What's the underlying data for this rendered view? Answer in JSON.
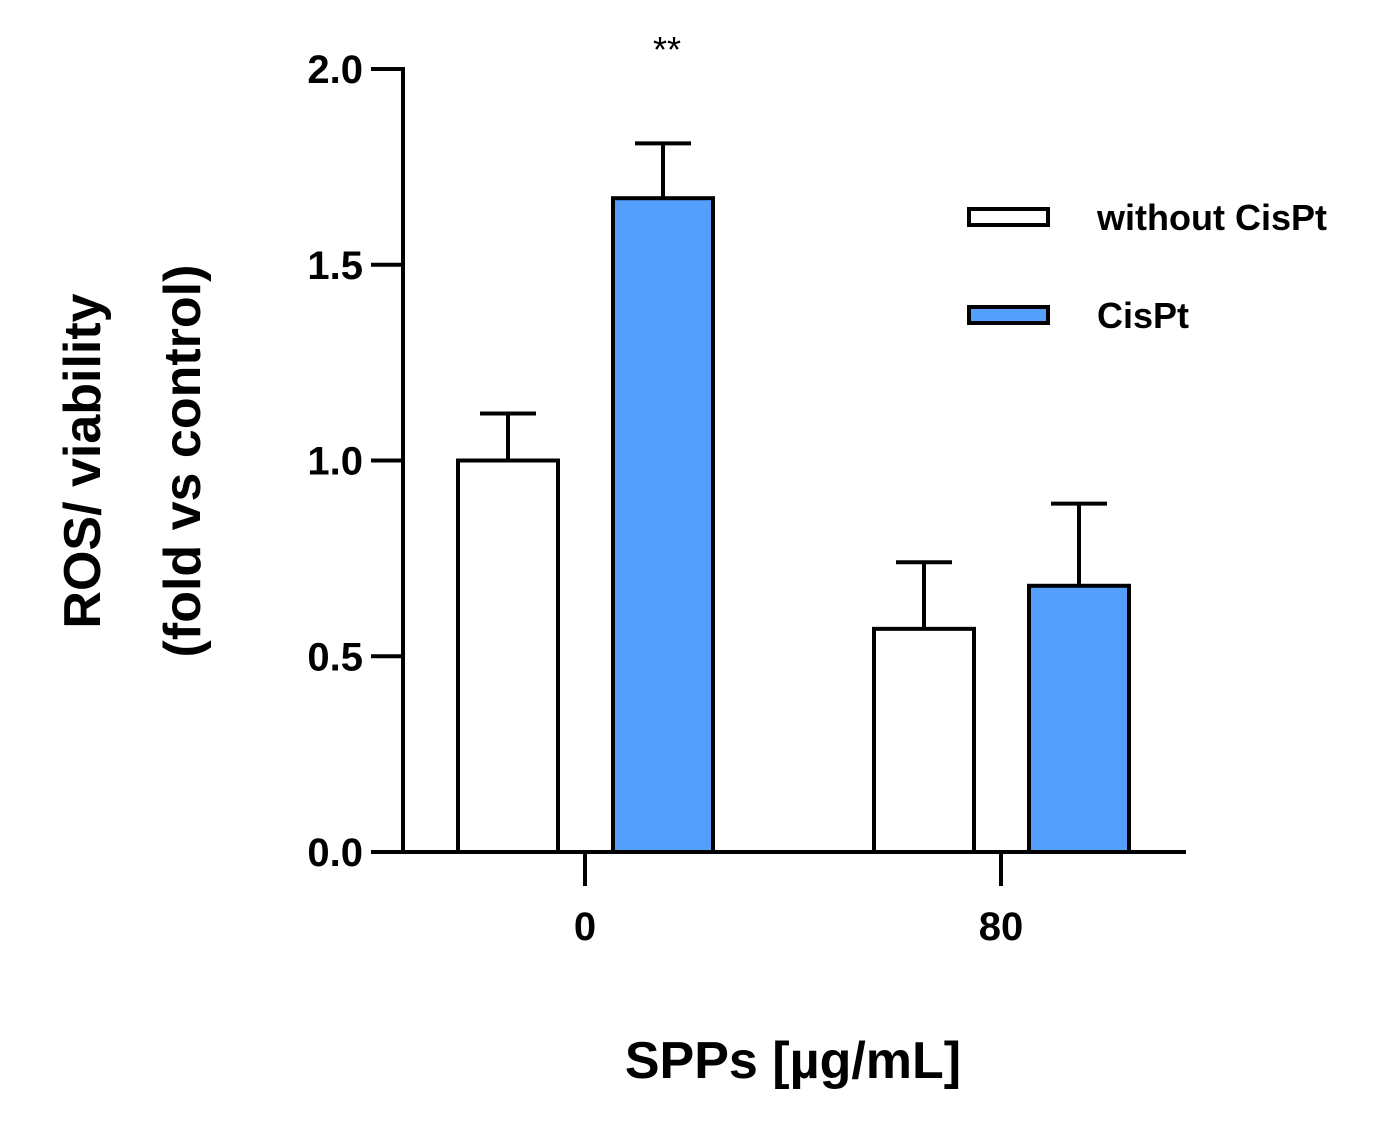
{
  "chart_data": {
    "type": "bar",
    "title": "",
    "xlabel": "SPPs [µg/mL]",
    "ylabel": [
      "ROS/ viability",
      "(fold vs control)"
    ],
    "ylim": [
      0,
      2.0
    ],
    "yticks": [
      0.0,
      0.5,
      1.0,
      1.5,
      2.0
    ],
    "ytick_labels": [
      "0.0",
      "0.5",
      "1.0",
      "1.5",
      "2.0"
    ],
    "categories": [
      "0",
      "80"
    ],
    "series": [
      {
        "name": "without CisPt",
        "values": [
          1.0,
          0.57
        ],
        "errors": [
          0.12,
          0.17
        ],
        "color": "#ffffff"
      },
      {
        "name": "CisPt",
        "values": [
          1.67,
          0.68
        ],
        "errors": [
          0.14,
          0.21
        ],
        "color": "#559ffc"
      }
    ],
    "annotations": [
      {
        "text": "**",
        "category": "0",
        "series": "CisPt"
      }
    ],
    "legend": "right",
    "grid": false
  }
}
